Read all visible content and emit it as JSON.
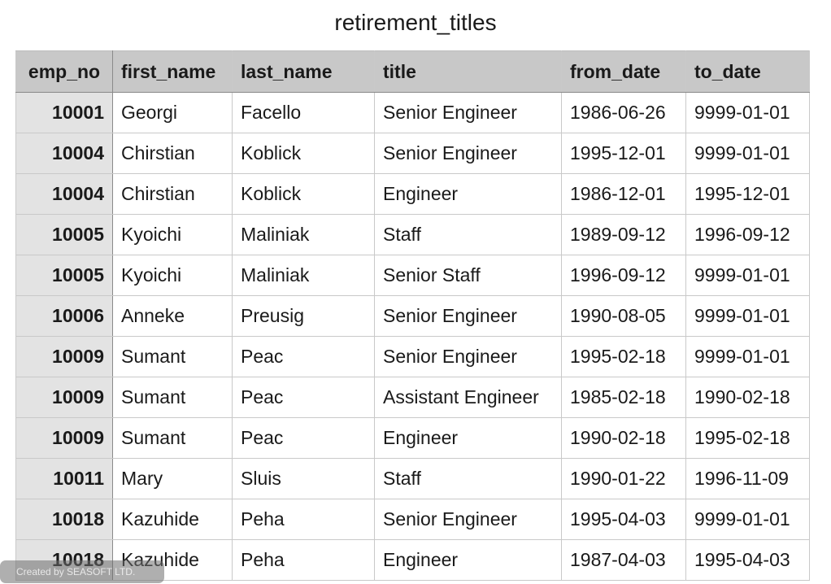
{
  "title": "retirement_titles",
  "columns": [
    "emp_no",
    "first_name",
    "last_name",
    "title",
    "from_date",
    "to_date"
  ],
  "rows": [
    [
      "10001",
      "Georgi",
      "Facello",
      "Senior Engineer",
      "1986-06-26",
      "9999-01-01"
    ],
    [
      "10004",
      "Chirstian",
      "Koblick",
      "Senior Engineer",
      "1995-12-01",
      "9999-01-01"
    ],
    [
      "10004",
      "Chirstian",
      "Koblick",
      "Engineer",
      "1986-12-01",
      "1995-12-01"
    ],
    [
      "10005",
      "Kyoichi",
      "Maliniak",
      "Staff",
      "1989-09-12",
      "1996-09-12"
    ],
    [
      "10005",
      "Kyoichi",
      "Maliniak",
      "Senior Staff",
      "1996-09-12",
      "9999-01-01"
    ],
    [
      "10006",
      "Anneke",
      "Preusig",
      "Senior Engineer",
      "1990-08-05",
      "9999-01-01"
    ],
    [
      "10009",
      "Sumant",
      "Peac",
      "Senior Engineer",
      "1995-02-18",
      "9999-01-01"
    ],
    [
      "10009",
      "Sumant",
      "Peac",
      "Assistant Engineer",
      "1985-02-18",
      "1990-02-18"
    ],
    [
      "10009",
      "Sumant",
      "Peac",
      "Engineer",
      "1990-02-18",
      "1995-02-18"
    ],
    [
      "10011",
      "Mary",
      "Sluis",
      "Staff",
      "1990-01-22",
      "1996-11-09"
    ],
    [
      "10018",
      "Kazuhide",
      "Peha",
      "Senior Engineer",
      "1995-04-03",
      "9999-01-01"
    ],
    [
      "10018",
      "Kazuhide",
      "Peha",
      "Engineer",
      "1987-04-03",
      "1995-04-03"
    ]
  ],
  "watermark": "Created by SEASOFT LTD."
}
